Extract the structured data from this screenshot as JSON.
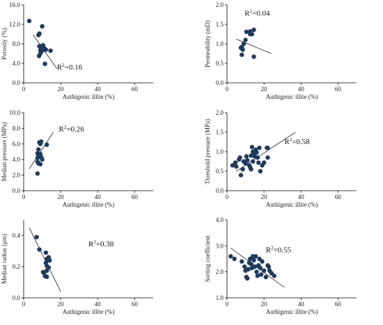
{
  "figure": {
    "title": ""
  },
  "chart_data": [
    {
      "id": "porosity",
      "type": "scatter",
      "xlabel": "Authigenic illite (%)",
      "ylabel": "Porosity (%)",
      "xlim": [
        0,
        70
      ],
      "ylim": [
        0,
        16
      ],
      "xticks": [
        0,
        20,
        40,
        60
      ],
      "yticks": [
        0,
        4,
        8,
        12,
        16
      ],
      "ytick_labels": [
        "0.0",
        "4.0",
        "8.0",
        "12.0",
        "16.0"
      ],
      "points": [
        [
          3,
          12.7
        ],
        [
          8,
          9.8
        ],
        [
          8.5,
          10.1
        ],
        [
          10,
          11.6
        ],
        [
          8.5,
          7.5
        ],
        [
          9.5,
          7.5
        ],
        [
          10.5,
          7.7
        ],
        [
          11,
          7.2
        ],
        [
          9,
          6.7
        ],
        [
          10,
          6.6
        ],
        [
          11,
          6.9
        ],
        [
          12,
          6.8
        ],
        [
          14.5,
          6.6
        ],
        [
          9,
          6.0
        ],
        [
          8.3,
          5.5
        ],
        [
          11.5,
          3.9
        ]
      ],
      "trend": [
        [
          5,
          9.9
        ],
        [
          18,
          2.9
        ]
      ],
      "r2": "=0.16",
      "r2_pos": [
        18,
        2.7
      ]
    },
    {
      "id": "permeability",
      "type": "scatter",
      "xlabel": "Authigenic illite (%)",
      "ylabel": "Permeability (mD)",
      "xlim": [
        0,
        70
      ],
      "ylim": [
        0,
        2
      ],
      "xticks": [
        0,
        20,
        40,
        60
      ],
      "yticks": [
        0,
        0.5,
        1,
        1.5,
        2
      ],
      "ytick_labels": [
        "0.0",
        "0.5",
        "1.0",
        "1.5",
        "2.0"
      ],
      "points": [
        [
          10.5,
          1.31
        ],
        [
          12.5,
          1.25
        ],
        [
          13.5,
          1.25
        ],
        [
          14.5,
          1.36
        ],
        [
          12.5,
          1.32
        ],
        [
          10,
          1.1
        ],
        [
          9,
          1.0
        ],
        [
          8,
          0.92
        ],
        [
          7.5,
          0.9
        ],
        [
          8.5,
          0.85
        ],
        [
          8,
          0.72
        ],
        [
          14.5,
          0.67
        ]
      ],
      "trend": [
        [
          5,
          1.12
        ],
        [
          24,
          0.75
        ]
      ],
      "r2": "=0.04",
      "r2_pos": [
        9.5,
        1.72
      ]
    },
    {
      "id": "median_pressure",
      "type": "scatter",
      "xlabel": "Authigenic illite (%)",
      "ylabel": "Median pressure (MPa)",
      "xlim": [
        0,
        70
      ],
      "ylim": [
        0,
        10
      ],
      "xticks": [
        0,
        20,
        40,
        60
      ],
      "yticks": [
        0,
        2,
        4,
        6,
        8,
        10
      ],
      "ytick_labels": [
        "0.0",
        "2.0",
        "4.0",
        "6.0",
        "8.0",
        "10.0"
      ],
      "points": [
        [
          8.5,
          6.2
        ],
        [
          9.5,
          6.3
        ],
        [
          9,
          6.0
        ],
        [
          12.5,
          5.9
        ],
        [
          8,
          5.3
        ],
        [
          7.5,
          4.8
        ],
        [
          9,
          4.7
        ],
        [
          8,
          4.5
        ],
        [
          7.5,
          4.2
        ],
        [
          9.5,
          4.3
        ],
        [
          10,
          4.0
        ],
        [
          7.5,
          3.7
        ],
        [
          8,
          3.5
        ],
        [
          9,
          3.4
        ],
        [
          7.5,
          2.2
        ]
      ],
      "trend": [
        [
          3,
          2.8
        ],
        [
          16,
          7.5
        ]
      ],
      "r2": "=0.26",
      "r2_pos": [
        19,
        7.6
      ]
    },
    {
      "id": "threshold_pressure",
      "type": "scatter",
      "xlabel": "Authigenic illite (%)",
      "ylabel": "Threshold pressure (MPa)",
      "xlim": [
        0,
        70
      ],
      "ylim": [
        0,
        2
      ],
      "xticks": [
        0,
        20,
        40,
        60
      ],
      "yticks": [
        0,
        0.5,
        1,
        1.5,
        2
      ],
      "ytick_labels": [
        "0.0",
        "0.5",
        "1.0",
        "1.5",
        "2.0"
      ],
      "points": [
        [
          3,
          0.65
        ],
        [
          4.5,
          0.72
        ],
        [
          5,
          0.62
        ],
        [
          6.5,
          0.8
        ],
        [
          7,
          0.85
        ],
        [
          7.5,
          0.4
        ],
        [
          8.5,
          0.55
        ],
        [
          9,
          0.75
        ],
        [
          10,
          0.7
        ],
        [
          10.5,
          0.88
        ],
        [
          11,
          0.78
        ],
        [
          12,
          0.65
        ],
        [
          12.5,
          0.6
        ],
        [
          13,
          0.9
        ],
        [
          13,
          0.55
        ],
        [
          13.5,
          1.12
        ],
        [
          14,
          1.0
        ],
        [
          14.5,
          0.98
        ],
        [
          14,
          0.75
        ],
        [
          15,
          0.88
        ],
        [
          15.5,
          1.05
        ],
        [
          16,
          0.98
        ],
        [
          16.5,
          0.85
        ],
        [
          17,
          0.72
        ],
        [
          17.5,
          1.1
        ],
        [
          18,
          0.5
        ],
        [
          19,
          0.65
        ],
        [
          20,
          0.72
        ],
        [
          21.5,
          1.1
        ],
        [
          22,
          1.1
        ],
        [
          22,
          0.85
        ]
      ],
      "trend": [
        [
          5,
          0.5
        ],
        [
          37,
          1.5
        ]
      ],
      "r2": "=0.58",
      "r2_pos": [
        31,
        1.2
      ]
    },
    {
      "id": "median_radius",
      "type": "scatter",
      "xlabel": "Authigenic illite (%)",
      "ylabel": "Median radius (μm)",
      "xlim": [
        0,
        70
      ],
      "ylim": [
        0,
        0.5
      ],
      "xticks": [
        0,
        20,
        40,
        60
      ],
      "yticks": [
        0,
        0.2,
        0.4
      ],
      "ytick_labels": [
        "0.0",
        "0.2",
        "0.4"
      ],
      "points": [
        [
          7,
          0.39
        ],
        [
          8.5,
          0.31
        ],
        [
          12,
          0.29
        ],
        [
          12.5,
          0.25
        ],
        [
          13.5,
          0.26
        ],
        [
          13,
          0.24
        ],
        [
          14,
          0.24
        ],
        [
          12,
          0.225
        ],
        [
          12.5,
          0.205
        ],
        [
          13.5,
          0.195
        ],
        [
          10.5,
          0.165
        ],
        [
          11,
          0.16
        ],
        [
          12.5,
          0.175
        ],
        [
          11.5,
          0.14
        ],
        [
          12.5,
          0.135
        ]
      ],
      "trend": [
        [
          3,
          0.45
        ],
        [
          20,
          0.04
        ]
      ],
      "r2": "=0.38",
      "r2_pos": [
        35,
        0.33
      ]
    },
    {
      "id": "sorting_coefficient",
      "type": "scatter",
      "xlabel": "Authigenic illite (%)",
      "ylabel": "Sorting coefficient",
      "xlim": [
        0,
        70
      ],
      "ylim": [
        1,
        4
      ],
      "xticks": [
        0,
        20,
        40,
        60
      ],
      "yticks": [
        1,
        2,
        3,
        4
      ],
      "ytick_labels": [
        "1.0",
        "2.0",
        "3.0",
        "4.0"
      ],
      "points": [
        [
          2,
          2.6
        ],
        [
          4,
          2.5
        ],
        [
          8,
          2.4
        ],
        [
          9.5,
          2.2
        ],
        [
          10,
          2.05
        ],
        [
          10.5,
          1.8
        ],
        [
          11,
          1.75
        ],
        [
          11.5,
          2.1
        ],
        [
          12,
          2.35
        ],
        [
          12.5,
          2.5
        ],
        [
          13,
          2.3
        ],
        [
          13.5,
          2.15
        ],
        [
          14,
          2.6
        ],
        [
          14.5,
          2.45
        ],
        [
          15,
          2.2
        ],
        [
          15.5,
          2.6
        ],
        [
          16,
          2.0
        ],
        [
          16.5,
          1.85
        ],
        [
          17,
          2.25
        ],
        [
          17.5,
          2.5
        ],
        [
          18,
          2.15
        ],
        [
          18.5,
          1.9
        ],
        [
          19,
          2.4
        ],
        [
          20,
          2.05
        ],
        [
          21,
          1.8
        ],
        [
          22,
          2.25
        ],
        [
          22.5,
          2.2
        ],
        [
          23,
          2.05
        ],
        [
          24,
          1.95
        ],
        [
          25.5,
          1.85
        ]
      ],
      "trend": [
        [
          2,
          2.92
        ],
        [
          31,
          1.4
        ]
      ],
      "r2": "=0.55",
      "r2_pos": [
        21,
        2.75
      ]
    }
  ]
}
